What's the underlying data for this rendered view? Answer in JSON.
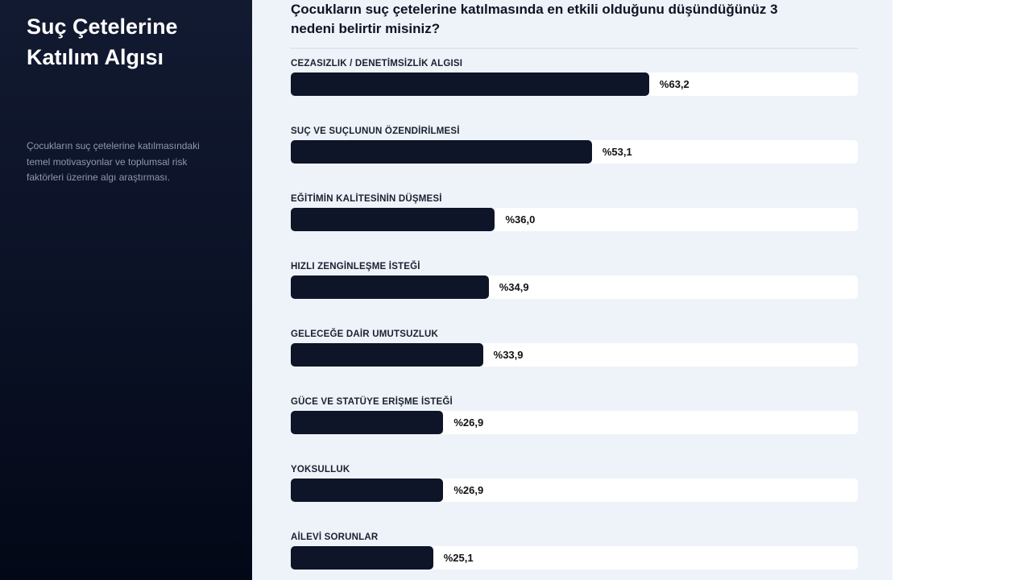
{
  "sidebar": {
    "title": "Suç Çetelerine Katılım Algısı",
    "description": "Çocukların suç çetelerine katılmasındaki temel motivasyonlar ve toplumsal risk faktörleri üzerine algı araştırması."
  },
  "chart_data": {
    "type": "bar",
    "orientation": "horizontal",
    "title": "Çocukların suç çetelerine katılmasında en etkili olduğunu düşündüğünüz 3 nedeni belirtir misiniz?",
    "xlim": [
      0,
      100
    ],
    "bar_color": "#0e1528",
    "categories": [
      "CEZASIZLIK / DENETİMSİZLİK ALGISI",
      "SUÇ VE SUÇLUNUN ÖZENDİRİLMESİ",
      "EĞİTİMİN KALİTESİNİN DÜŞMESİ",
      "HIZLI ZENGİNLEŞME İSTEĞİ",
      "GELECEĞE DAİR UMUTSUZLUK",
      "GÜCE VE STATÜYE ERİŞME İSTEĞİ",
      "YOKSULLUK",
      "AİLEVİ SORUNLAR"
    ],
    "values": [
      63.2,
      53.1,
      36.0,
      34.9,
      33.9,
      26.9,
      26.9,
      25.1
    ],
    "labels": [
      "%63,2",
      "%53,1",
      "%36,0",
      "%34,9",
      "%33,9",
      "%26,9",
      "%26,9",
      "%25,1"
    ]
  }
}
